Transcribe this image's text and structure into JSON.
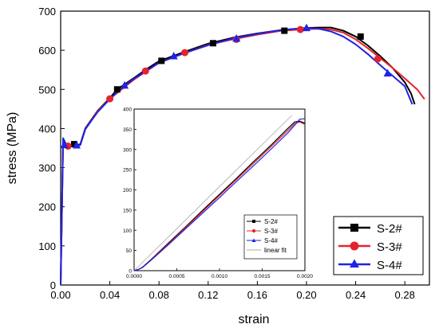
{
  "chart_data": [
    {
      "type": "line",
      "title": "",
      "xlabel": "strain",
      "ylabel": "stress (MPa)",
      "xlim": [
        0,
        0.3
      ],
      "ylim": [
        0,
        700
      ],
      "xticks": [
        "0.00",
        "0.04",
        "0.08",
        "0.12",
        "0.16",
        "0.20",
        "0.24",
        "0.28"
      ],
      "yticks": [
        "0",
        "100",
        "200",
        "300",
        "400",
        "500",
        "600",
        "700"
      ],
      "legend_position": "bottom-right",
      "series": [
        {
          "name": "S-2#",
          "color": "#000000",
          "marker": "square",
          "x": [
            0,
            0.002,
            0.004,
            0.006,
            0.01,
            0.013,
            0.016,
            0.02,
            0.03,
            0.04,
            0.046,
            0.06,
            0.07,
            0.08,
            0.1,
            0.12,
            0.14,
            0.16,
            0.18,
            0.2,
            0.21,
            0.22,
            0.23,
            0.24,
            0.25,
            0.26,
            0.27,
            0.28,
            0.285,
            0.288
          ],
          "y": [
            0,
            375,
            362,
            355,
            358,
            357,
            360,
            400,
            445,
            478,
            500,
            530,
            552,
            572,
            595,
            617,
            632,
            643,
            652,
            657,
            658,
            658,
            650,
            635,
            612,
            585,
            555,
            518,
            490,
            462
          ],
          "markers_x": [
            0.011,
            0.046,
            0.082,
            0.124,
            0.182,
            0.244
          ],
          "markers_y": [
            360,
            500,
            573,
            618,
            650,
            635
          ]
        },
        {
          "name": "S-3#",
          "color": "#e3242b",
          "marker": "circle",
          "x": [
            0,
            0.002,
            0.004,
            0.006,
            0.01,
            0.013,
            0.016,
            0.02,
            0.03,
            0.04,
            0.06,
            0.07,
            0.08,
            0.1,
            0.12,
            0.14,
            0.16,
            0.18,
            0.2,
            0.21,
            0.22,
            0.23,
            0.24,
            0.25,
            0.26,
            0.27,
            0.28,
            0.29,
            0.296
          ],
          "y": [
            0,
            370,
            358,
            352,
            355,
            354,
            358,
            398,
            444,
            476,
            526,
            547,
            568,
            592,
            614,
            628,
            640,
            650,
            654,
            655,
            653,
            645,
            628,
            605,
            580,
            555,
            528,
            500,
            475
          ],
          "markers_x": [
            0.006,
            0.04,
            0.069,
            0.101,
            0.143,
            0.195,
            0.258
          ],
          "markers_y": [
            355,
            476,
            547,
            594,
            628,
            653,
            578
          ]
        },
        {
          "name": "S-4#",
          "color": "#1f23e6",
          "marker": "triangle",
          "x": [
            0,
            0.002,
            0.004,
            0.006,
            0.01,
            0.013,
            0.016,
            0.02,
            0.03,
            0.04,
            0.05,
            0.06,
            0.08,
            0.1,
            0.12,
            0.14,
            0.16,
            0.18,
            0.2,
            0.21,
            0.22,
            0.23,
            0.24,
            0.25,
            0.26,
            0.27,
            0.28,
            0.286
          ],
          "y": [
            0,
            375,
            360,
            354,
            356,
            355,
            358,
            398,
            442,
            475,
            505,
            528,
            568,
            592,
            613,
            630,
            642,
            652,
            657,
            655,
            648,
            635,
            615,
            590,
            562,
            535,
            508,
            462
          ],
          "markers_x": [
            0.003,
            0.013,
            0.052,
            0.092,
            0.143,
            0.2,
            0.266
          ],
          "markers_y": [
            358,
            357,
            510,
            585,
            630,
            657,
            541
          ]
        }
      ]
    },
    {
      "type": "line",
      "title": "",
      "xlabel": "",
      "ylabel": "",
      "xlim": [
        0,
        0.002
      ],
      "ylim": [
        0,
        400
      ],
      "xticks": [
        "0.0000",
        "0.0005",
        "0.0010",
        "0.0015",
        "0.0020"
      ],
      "yticks": [
        "0",
        "50",
        "100",
        "150",
        "200",
        "250",
        "300",
        "350",
        "400"
      ],
      "legend_position": "bottom-right",
      "series": [
        {
          "name": "S-2#",
          "color": "#000000",
          "marker": "square",
          "x": [
            0,
            5e-05,
            0.0001,
            0.0002,
            0.0004,
            0.0006,
            0.0008,
            0.001,
            0.0012,
            0.0014,
            0.0016,
            0.0018,
            0.00188,
            0.00194,
            0.002
          ],
          "y": [
            0,
            3,
            9,
            28,
            68,
            108,
            149,
            189,
            229,
            270,
            310,
            352,
            368,
            370,
            365
          ]
        },
        {
          "name": "S-3#",
          "color": "#e3242b",
          "marker": "circle",
          "x": [
            0,
            5e-05,
            0.0001,
            0.0002,
            0.0004,
            0.0006,
            0.0008,
            0.001,
            0.0012,
            0.0014,
            0.0016,
            0.0018,
            0.00188,
            0.00194,
            0.002
          ],
          "y": [
            0,
            3,
            8,
            27,
            66,
            106,
            146,
            186,
            226,
            266,
            306,
            347,
            364,
            368,
            362
          ]
        },
        {
          "name": "S-4#",
          "color": "#1f23e6",
          "marker": "triangle",
          "x": [
            0,
            5e-05,
            0.0001,
            0.0002,
            0.0004,
            0.0006,
            0.0008,
            0.001,
            0.0012,
            0.0014,
            0.0016,
            0.0018,
            0.00188,
            0.00194,
            0.002
          ],
          "y": [
            0,
            3,
            8,
            26,
            64,
            103,
            142,
            181,
            221,
            260,
            300,
            341,
            360,
            375,
            376
          ]
        },
        {
          "name": "linear fit",
          "color": "#a9a9a9",
          "marker": "none",
          "x": [
            0,
            0.00185
          ],
          "y": [
            0,
            385
          ]
        }
      ]
    }
  ]
}
